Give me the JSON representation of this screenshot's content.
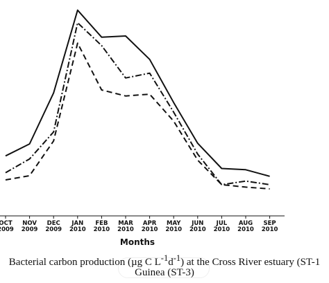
{
  "chart_data": {
    "type": "line",
    "categories": [
      [
        "OCT",
        "2009"
      ],
      [
        "NOV",
        "2009"
      ],
      [
        "DEC",
        "2009"
      ],
      [
        "JAN",
        "2010"
      ],
      [
        "FEB",
        "2010"
      ],
      [
        "MAR",
        "2010"
      ],
      [
        "APR",
        "2010"
      ],
      [
        "MAY",
        "2010"
      ],
      [
        "JUN",
        "2010"
      ],
      [
        "JUL",
        "2010"
      ],
      [
        "AUG",
        "2010"
      ],
      [
        "SEP",
        "2010"
      ]
    ],
    "xlabel": "Months",
    "series": [
      {
        "style": "solid",
        "values": [
          100,
          120,
          205,
          343,
          298,
          300,
          261,
          189,
          121,
          79,
          77,
          66
        ]
      },
      {
        "style": "dash-dot",
        "values": [
          72,
          95,
          140,
          322,
          284,
          230,
          238,
          173,
          103,
          52,
          58,
          52
        ]
      },
      {
        "style": "dashed",
        "values": [
          60,
          67,
          125,
          288,
          210,
          200,
          203,
          158,
          93,
          52,
          48,
          45
        ]
      }
    ],
    "ylim": [
      0,
      360
    ]
  },
  "caption": {
    "line1": "Bacterial carbon production (µg C L",
    "sup1": "-1",
    "line1_mid": "d",
    "sup2": "-1",
    "line1_end": ") at the Cross River estuary (ST-1",
    "line2": "Guinea (ST-3)"
  }
}
